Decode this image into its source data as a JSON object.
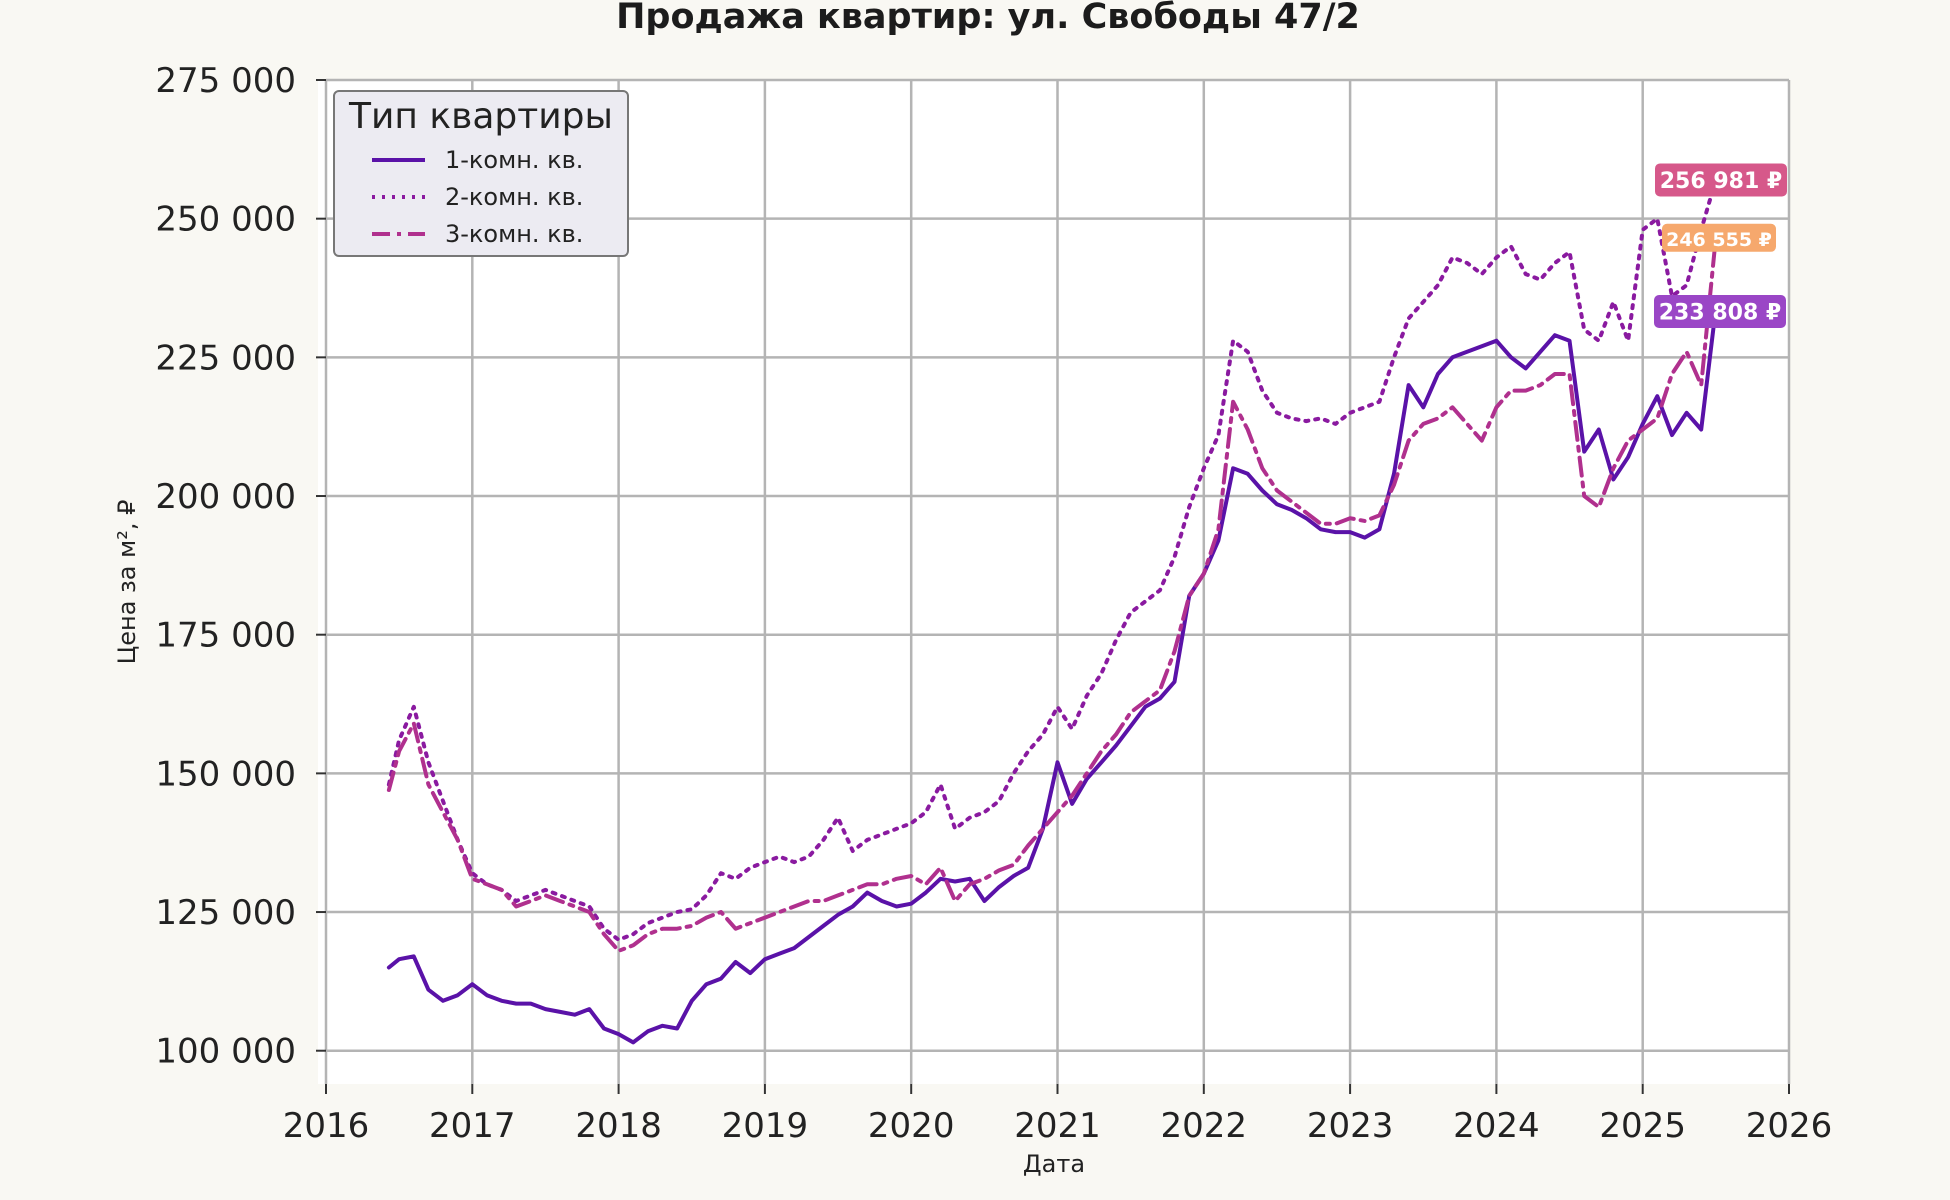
{
  "chart_data": {
    "type": "line",
    "title": "Продажа квартир: ул. Свободы 47/2",
    "xlabel": "Дата",
    "ylabel": "Цена за м², ₽",
    "xlim": [
      2016,
      2026
    ],
    "ylim": [
      94000,
      275000
    ],
    "x_ticks": [
      2016,
      2017,
      2018,
      2019,
      2020,
      2021,
      2022,
      2023,
      2024,
      2025,
      2026
    ],
    "x_tick_labels": [
      "2016",
      "2017",
      "2018",
      "2019",
      "2020",
      "2021",
      "2022",
      "2023",
      "2024",
      "2025",
      "2026"
    ],
    "y_ticks": [
      100000,
      125000,
      150000,
      175000,
      200000,
      225000,
      250000,
      275000
    ],
    "y_tick_labels": [
      "100 000",
      "125 000",
      "150 000",
      "175 000",
      "200 000",
      "225 000",
      "250 000",
      "275 000"
    ],
    "grid": true,
    "legend": {
      "title": "Тип квартиры",
      "position": "top-left"
    },
    "series": [
      {
        "name": "1-комн. кв.",
        "color": "#5a12a8",
        "dash": "solid",
        "x": [
          2016.43,
          2016.5,
          2016.6,
          2016.7,
          2016.8,
          2016.9,
          2017.0,
          2017.1,
          2017.2,
          2017.3,
          2017.4,
          2017.5,
          2017.6,
          2017.7,
          2017.8,
          2017.9,
          2018.0,
          2018.1,
          2018.2,
          2018.3,
          2018.4,
          2018.5,
          2018.6,
          2018.7,
          2018.8,
          2018.9,
          2019.0,
          2019.1,
          2019.2,
          2019.3,
          2019.4,
          2019.5,
          2019.6,
          2019.7,
          2019.8,
          2019.9,
          2020.0,
          2020.1,
          2020.2,
          2020.3,
          2020.4,
          2020.5,
          2020.6,
          2020.7,
          2020.8,
          2020.9,
          2021.0,
          2021.1,
          2021.2,
          2021.3,
          2021.4,
          2021.5,
          2021.6,
          2021.7,
          2021.8,
          2021.9,
          2022.0,
          2022.1,
          2022.2,
          2022.3,
          2022.4,
          2022.5,
          2022.6,
          2022.7,
          2022.8,
          2022.9,
          2023.0,
          2023.1,
          2023.2,
          2023.3,
          2023.4,
          2023.5,
          2023.6,
          2023.7,
          2023.8,
          2023.9,
          2024.0,
          2024.1,
          2024.2,
          2024.3,
          2024.4,
          2024.5,
          2024.6,
          2024.7,
          2024.8,
          2024.9,
          2025.0,
          2025.1,
          2025.2,
          2025.3,
          2025.4,
          2025.5
        ],
        "values": [
          115000,
          116500,
          117000,
          111000,
          109000,
          110000,
          112000,
          110000,
          109000,
          108500,
          108500,
          107500,
          107000,
          106500,
          107500,
          104000,
          103000,
          101500,
          103500,
          104500,
          104000,
          109000,
          112000,
          113000,
          116000,
          114000,
          116500,
          117500,
          118500,
          120500,
          122500,
          124500,
          126000,
          128500,
          127000,
          126000,
          126500,
          128500,
          131000,
          130500,
          131000,
          127000,
          129500,
          131500,
          133000,
          140000,
          152000,
          144500,
          149000,
          152000,
          155000,
          158500,
          162000,
          163500,
          166500,
          182000,
          186000,
          192000,
          205000,
          204000,
          201000,
          198500,
          197500,
          196000,
          194000,
          193500,
          193500,
          192500,
          194000,
          204000,
          220000,
          216000,
          222000,
          225000,
          226000,
          227000,
          228000,
          225000,
          223000,
          226000,
          229000,
          228000,
          208000,
          212000,
          203000,
          207000,
          213000,
          218000,
          211000,
          215000,
          212000,
          233808
        ]
      },
      {
        "name": "2-комн. кв.",
        "color": "#8a1aa0",
        "dash": "dotted",
        "x": [
          2016.43,
          2016.5,
          2016.6,
          2016.7,
          2016.8,
          2016.9,
          2017.0,
          2017.1,
          2017.2,
          2017.3,
          2017.4,
          2017.5,
          2017.6,
          2017.7,
          2017.8,
          2017.9,
          2018.0,
          2018.1,
          2018.2,
          2018.3,
          2018.4,
          2018.5,
          2018.6,
          2018.7,
          2018.8,
          2018.9,
          2019.0,
          2019.1,
          2019.2,
          2019.3,
          2019.4,
          2019.5,
          2019.6,
          2019.7,
          2019.8,
          2019.9,
          2020.0,
          2020.1,
          2020.2,
          2020.3,
          2020.4,
          2020.5,
          2020.6,
          2020.7,
          2020.8,
          2020.9,
          2021.0,
          2021.1,
          2021.2,
          2021.3,
          2021.4,
          2021.5,
          2021.6,
          2021.7,
          2021.8,
          2021.9,
          2022.0,
          2022.1,
          2022.2,
          2022.3,
          2022.4,
          2022.5,
          2022.6,
          2022.7,
          2022.8,
          2022.9,
          2023.0,
          2023.1,
          2023.2,
          2023.3,
          2023.4,
          2023.5,
          2023.6,
          2023.7,
          2023.8,
          2023.9,
          2024.0,
          2024.1,
          2024.2,
          2024.3,
          2024.4,
          2024.5,
          2024.6,
          2024.7,
          2024.8,
          2024.9,
          2025.0,
          2025.1,
          2025.2,
          2025.3,
          2025.4,
          2025.5
        ],
        "values": [
          148000,
          156000,
          162000,
          152000,
          145000,
          138000,
          132000,
          130000,
          129000,
          127000,
          128000,
          129000,
          128000,
          127000,
          126000,
          122000,
          120000,
          121000,
          123000,
          124000,
          125000,
          125500,
          128000,
          132000,
          131000,
          133000,
          134000,
          135000,
          134000,
          135000,
          138000,
          142000,
          136000,
          138000,
          139000,
          140000,
          141000,
          143000,
          148000,
          140000,
          142000,
          143000,
          145000,
          150000,
          154000,
          157000,
          162000,
          158000,
          164000,
          168000,
          174000,
          179000,
          181000,
          183000,
          189000,
          198000,
          205000,
          211000,
          228000,
          226000,
          219000,
          215000,
          214000,
          213500,
          214000,
          213000,
          215000,
          216000,
          217000,
          225000,
          232000,
          235000,
          238000,
          243000,
          242000,
          240000,
          243000,
          245000,
          240000,
          239000,
          242000,
          244000,
          230000,
          228000,
          235000,
          228000,
          248000,
          250000,
          236000,
          238000,
          248000,
          256981
        ]
      },
      {
        "name": "3-комн. кв.",
        "color": "#b0308e",
        "dash": "dashdot",
        "x": [
          2016.43,
          2016.5,
          2016.6,
          2016.7,
          2016.8,
          2016.9,
          2017.0,
          2017.1,
          2017.2,
          2017.3,
          2017.4,
          2017.5,
          2017.6,
          2017.7,
          2017.8,
          2017.9,
          2018.0,
          2018.1,
          2018.2,
          2018.3,
          2018.4,
          2018.5,
          2018.6,
          2018.7,
          2018.8,
          2018.9,
          2019.0,
          2019.1,
          2019.2,
          2019.3,
          2019.4,
          2019.5,
          2019.6,
          2019.7,
          2019.8,
          2019.9,
          2020.0,
          2020.1,
          2020.2,
          2020.3,
          2020.4,
          2020.5,
          2020.6,
          2020.7,
          2020.8,
          2020.9,
          2021.0,
          2021.1,
          2021.2,
          2021.3,
          2021.4,
          2021.5,
          2021.6,
          2021.7,
          2021.8,
          2021.9,
          2022.0,
          2022.1,
          2022.2,
          2022.3,
          2022.4,
          2022.5,
          2022.6,
          2022.7,
          2022.8,
          2022.9,
          2023.0,
          2023.1,
          2023.2,
          2023.3,
          2023.4,
          2023.5,
          2023.6,
          2023.7,
          2023.8,
          2023.9,
          2024.0,
          2024.1,
          2024.2,
          2024.3,
          2024.4,
          2024.5,
          2024.6,
          2024.7,
          2024.8,
          2024.9,
          2025.0,
          2025.1,
          2025.2,
          2025.3,
          2025.4,
          2025.5
        ],
        "values": [
          147000,
          154000,
          159000,
          148000,
          143000,
          138000,
          131000,
          130000,
          129000,
          126000,
          127000,
          128000,
          127000,
          126000,
          125000,
          121000,
          118000,
          119000,
          121000,
          122000,
          122000,
          122500,
          124000,
          125000,
          122000,
          123000,
          124000,
          125000,
          126000,
          127000,
          127000,
          128000,
          129000,
          130000,
          130000,
          131000,
          131500,
          130000,
          133000,
          127000,
          130000,
          131000,
          132500,
          133500,
          137000,
          140000,
          143000,
          146000,
          150000,
          154000,
          157000,
          161000,
          163000,
          165000,
          172000,
          182000,
          186000,
          194000,
          217000,
          212000,
          205000,
          201000,
          199000,
          197000,
          195000,
          195000,
          196000,
          195500,
          196500,
          202000,
          210000,
          213000,
          214000,
          216000,
          213000,
          210000,
          216000,
          219000,
          219000,
          220000,
          222000,
          222000,
          200000,
          198000,
          205000,
          210000,
          212000,
          214000,
          222000,
          226000,
          220000,
          246555
        ]
      }
    ],
    "annotations": [
      {
        "text": "256 981 ₽",
        "value": 256981,
        "color": "#d6588a"
      },
      {
        "text": "246 555 ₽",
        "value": 246555,
        "color": "#f6a86d"
      },
      {
        "text": "233 808 ₽",
        "value": 233808,
        "color": "#9a46c6"
      }
    ]
  }
}
